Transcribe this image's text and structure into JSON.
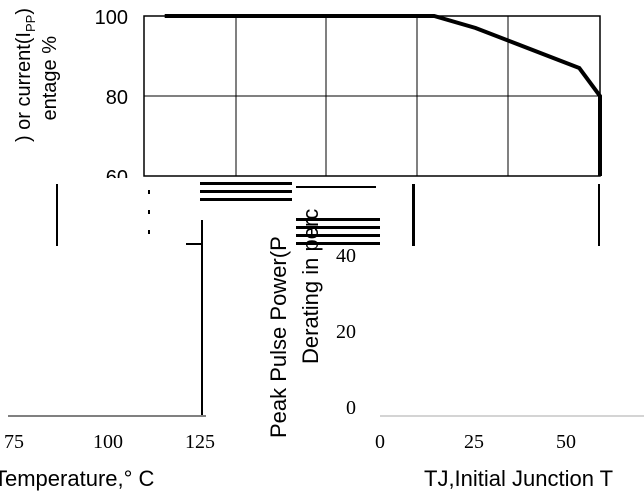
{
  "chart_data": {
    "type": "line",
    "ylabel_top": ") or current(I",
    "ylabel_top_sub": "PP",
    "ylabel_top_end": ")",
    "ylabel_mid": "entage %",
    "ylabel_left_line1": "Peak Pulse Power(P",
    "ylabel_left_line2": "Derating in perc",
    "xlabel_left": "Temperature,° C",
    "xlabel_right": "TJ,Initial Junction T",
    "y_ticks_top": [
      "100",
      "80",
      "60"
    ],
    "y_ticks_left": [
      "40",
      "20",
      "0"
    ],
    "x_ticks_right": [
      "0",
      "25",
      "50"
    ],
    "x_ticks_left": [
      "75",
      "100",
      "125"
    ],
    "series": [
      {
        "x": [
          -45,
          0,
          10,
          20,
          30,
          40,
          50,
          55,
          60,
          60
        ],
        "y": [
          100,
          100,
          100,
          100,
          97,
          93,
          89,
          87,
          80,
          60
        ]
      }
    ],
    "xlim": [
      -50,
      60
    ],
    "ylim": [
      60,
      100
    ],
    "grid": true
  },
  "colors": {
    "line": "#000000",
    "grid": "#000000",
    "background": "#ffffff"
  }
}
